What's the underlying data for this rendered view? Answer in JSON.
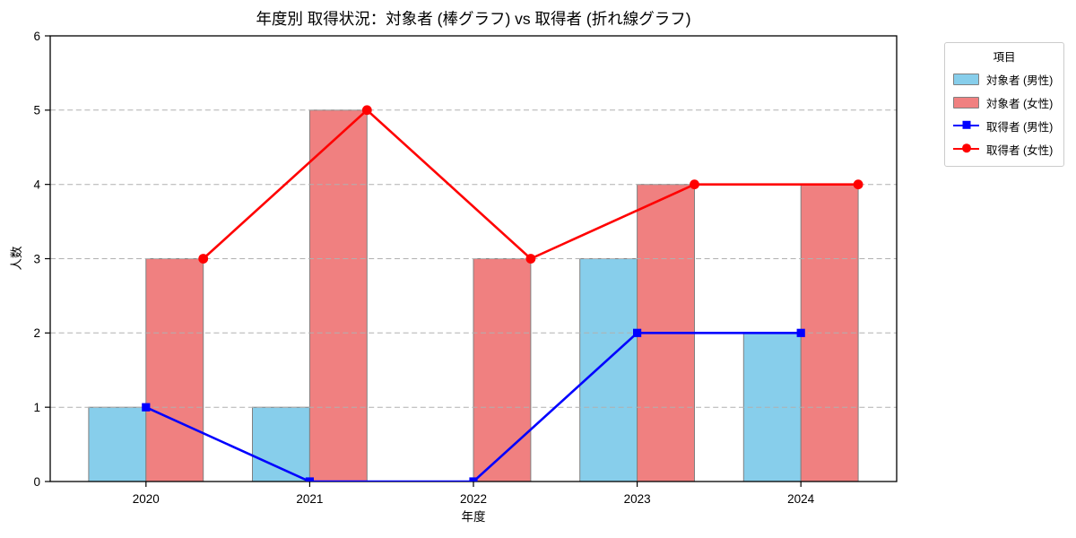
{
  "chart_data": {
    "type": "bar",
    "subtype": "grouped bars with overlaid lines",
    "title": "年度別 取得状況：対象者 (棒グラフ) vs 取得者 (折れ線グラフ)",
    "xlabel": "年度",
    "ylabel": "人数",
    "categories": [
      "2020",
      "2021",
      "2022",
      "2023",
      "2024"
    ],
    "ylim": [
      0,
      6
    ],
    "yticks": [
      0,
      1,
      2,
      3,
      4,
      5,
      6
    ],
    "grid": "horizontal dashed, drawn above bars",
    "legend": {
      "title": "項目",
      "position": "outside upper right"
    },
    "series": [
      {
        "name": "対象者 (男性)",
        "type": "bar",
        "marker": "none",
        "color": "#87CEEB",
        "values": [
          1,
          1,
          0,
          3,
          2
        ]
      },
      {
        "name": "対象者 (女性)",
        "type": "bar",
        "marker": "none",
        "color": "#F08080",
        "values": [
          3,
          5,
          3,
          4,
          4
        ]
      },
      {
        "name": "取得者 (男性)",
        "type": "line",
        "marker": "square",
        "color": "#0000FF",
        "values": [
          1,
          0,
          0,
          2,
          2
        ]
      },
      {
        "name": "取得者 (女性)",
        "type": "line",
        "marker": "circle",
        "color": "#FF0000",
        "values": [
          3,
          5,
          3,
          4,
          4
        ]
      }
    ],
    "bar_edge_color": "#808080",
    "grid_color": "#b0b0b0",
    "axis_color": "#000000"
  }
}
